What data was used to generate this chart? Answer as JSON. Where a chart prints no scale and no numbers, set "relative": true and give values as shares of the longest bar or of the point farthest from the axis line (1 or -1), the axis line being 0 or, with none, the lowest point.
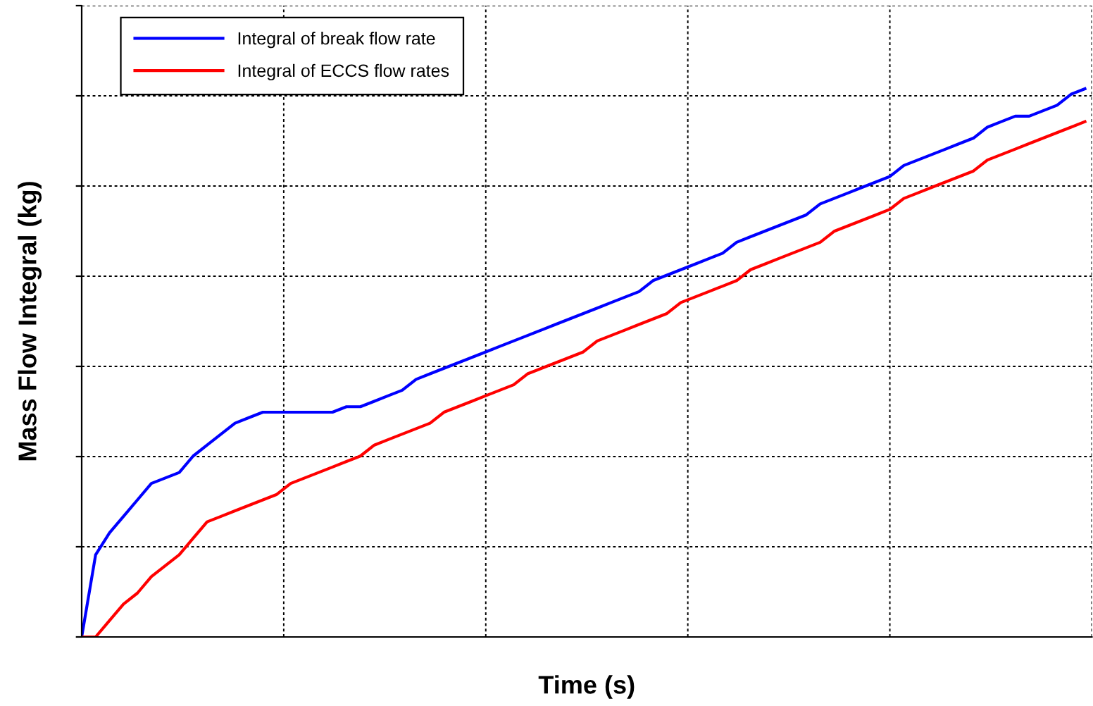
{
  "chart_data": {
    "type": "line",
    "xlabel": "Time (s)",
    "ylabel": "Mass Flow Integral (kg)",
    "relative": true,
    "grid": true,
    "legend": "top left",
    "marker": "none",
    "line_style": "solid",
    "categories": [
      null,
      null,
      null,
      null,
      null,
      null,
      null,
      null,
      null,
      null,
      null,
      null,
      null,
      null,
      null,
      null,
      null,
      null,
      null,
      null,
      null,
      null,
      null,
      null,
      null,
      null,
      null,
      null,
      null,
      null,
      null,
      null,
      null,
      null,
      null,
      null,
      null,
      null,
      null,
      null,
      null,
      null,
      null,
      null,
      null,
      null,
      null,
      null,
      null,
      null,
      null,
      null,
      null,
      null,
      null,
      null,
      null,
      null,
      null,
      null,
      null,
      null,
      null,
      null,
      null,
      null,
      null,
      null,
      null,
      null,
      null,
      null,
      null
    ],
    "series": [
      {
        "name": "Integral of break flow rate",
        "color": "#0000ff",
        "values": [
          0,
          0.15,
          0.19,
          0.22,
          0.25,
          0.28,
          0.29,
          0.3,
          0.33,
          0.35,
          0.37,
          0.39,
          0.4,
          0.41,
          0.41,
          0.41,
          0.41,
          0.41,
          0.41,
          0.42,
          0.42,
          0.43,
          0.44,
          0.45,
          0.47,
          0.48,
          0.49,
          0.5,
          0.51,
          0.52,
          0.53,
          0.54,
          0.55,
          0.56,
          0.57,
          0.58,
          0.59,
          0.6,
          0.61,
          0.62,
          0.63,
          0.65,
          0.66,
          0.67,
          0.68,
          0.69,
          0.7,
          0.72,
          0.73,
          0.74,
          0.75,
          0.76,
          0.77,
          0.79,
          0.8,
          0.81,
          0.82,
          0.83,
          0.84,
          0.86,
          0.87,
          0.88,
          0.89,
          0.9,
          0.91,
          0.93,
          0.94,
          0.95,
          0.95,
          0.96,
          0.97,
          0.99,
          1
        ]
      },
      {
        "name": "Integral of ECCS flow rates",
        "color": "#ff0000",
        "values": [
          0,
          0,
          0.03,
          0.06,
          0.08,
          0.11,
          0.13,
          0.15,
          0.18,
          0.21,
          0.22,
          0.23,
          0.24,
          0.25,
          0.26,
          0.28,
          0.29,
          0.3,
          0.31,
          0.32,
          0.33,
          0.35,
          0.36,
          0.37,
          0.38,
          0.39,
          0.41,
          0.42,
          0.43,
          0.44,
          0.45,
          0.46,
          0.48,
          0.49,
          0.5,
          0.51,
          0.52,
          0.54,
          0.55,
          0.56,
          0.57,
          0.58,
          0.59,
          0.61,
          0.62,
          0.63,
          0.64,
          0.65,
          0.67,
          0.68,
          0.69,
          0.7,
          0.71,
          0.72,
          0.74,
          0.75,
          0.76,
          0.77,
          0.78,
          0.8,
          0.81,
          0.82,
          0.83,
          0.84,
          0.85,
          0.87,
          0.88,
          0.89,
          0.9,
          0.91,
          0.92,
          0.93,
          0.94
        ]
      }
    ]
  }
}
